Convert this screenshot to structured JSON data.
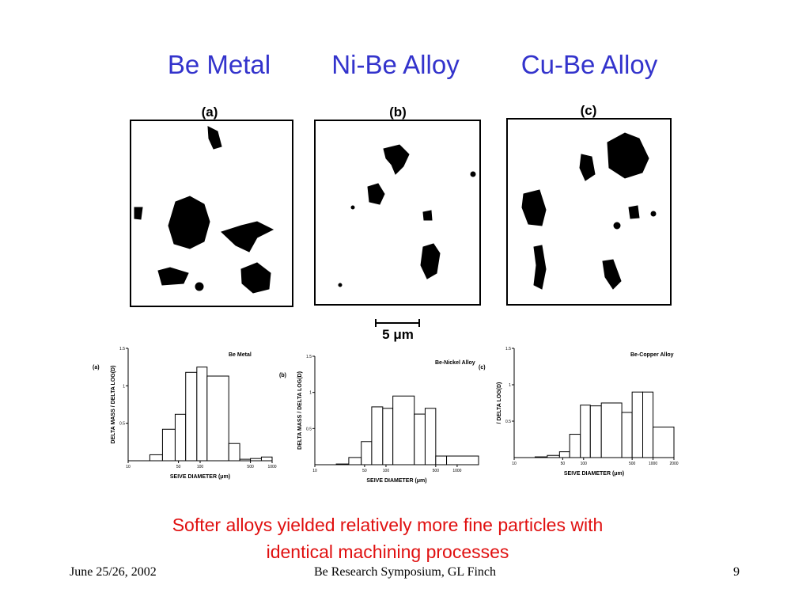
{
  "headings": [
    "Be Metal",
    "Ni-Be Alloy",
    "Cu-Be Alloy"
  ],
  "micrographs": [
    {
      "label": "(a)"
    },
    {
      "label": "(b)"
    },
    {
      "label": "(c)"
    }
  ],
  "scale_bar": "5 μm",
  "chart_data": [
    {
      "type": "histogram",
      "panel_label": "(a)",
      "title": "Be Metal",
      "ylabel": "DELTA MASS / DELTA LOG(D)",
      "xlabel": "SEIVE DIAMETER (μm)",
      "bins": [
        20,
        30,
        45,
        63,
        90,
        125,
        250,
        355,
        500,
        710,
        1000
      ],
      "counts": [
        0.08,
        0.42,
        0.62,
        1.18,
        1.25,
        1.13,
        0.23,
        0.02,
        0.03,
        0.05
      ],
      "xlim": [
        10,
        1000
      ],
      "ylim": [
        0,
        1.5
      ],
      "log_x": true,
      "xticks": [
        10,
        50,
        100,
        500,
        1000
      ],
      "yticks": [
        {
          "value": 0.5,
          "label": "0.5"
        },
        1,
        {
          "value": 1.5,
          "label": "1.5"
        }
      ]
    },
    {
      "type": "histogram",
      "panel_label": "(b)",
      "title": "Be-Nickel Alloy",
      "ylabel": "DELTA MASS / DELTA LOG(D)",
      "xlabel": "SEIVE DIAMETER (μm)",
      "bins": [
        20,
        30,
        45,
        63,
        90,
        125,
        250,
        355,
        500,
        710,
        2000
      ],
      "counts": [
        0.01,
        0.1,
        0.32,
        0.8,
        0.78,
        0.95,
        0.7,
        0.78,
        0.12,
        0.12
      ],
      "xlim": [
        10,
        2000
      ],
      "ylim": [
        0,
        1.5
      ],
      "log_x": true,
      "xticks": [
        10,
        50,
        100,
        500,
        1000
      ],
      "yticks": [
        {
          "value": 0.5,
          "label": "0.5"
        },
        1,
        {
          "value": 1.5,
          "label": "1.5"
        }
      ]
    },
    {
      "type": "histogram",
      "panel_label": "(c)",
      "title": "Be-Copper Alloy",
      "ylabel": "/ DELTA LOG(D)",
      "xlabel": "SEIVE DIAMETER (μm)",
      "bins": [
        20,
        30,
        45,
        63,
        90,
        125,
        180,
        355,
        500,
        710,
        1000,
        2000
      ],
      "counts": [
        0.01,
        0.03,
        0.08,
        0.32,
        0.72,
        0.71,
        0.75,
        0.62,
        0.9,
        0.9,
        0.42
      ],
      "xlim": [
        10,
        2000
      ],
      "ylim": [
        0,
        1.5
      ],
      "log_x": true,
      "xticks": [
        10,
        50,
        100,
        500,
        1000,
        2000
      ],
      "yticks": [
        {
          "value": 0.5,
          "label": "0.5"
        },
        1,
        {
          "value": 1.5,
          "label": "1.5"
        }
      ]
    }
  ],
  "caption": [
    "Softer alloys yielded relatively more fine particles with",
    "identical machining processes"
  ],
  "footer": {
    "left": "June 25/26, 2002",
    "center": "Be Research Symposium, GL Finch",
    "right": "9"
  }
}
